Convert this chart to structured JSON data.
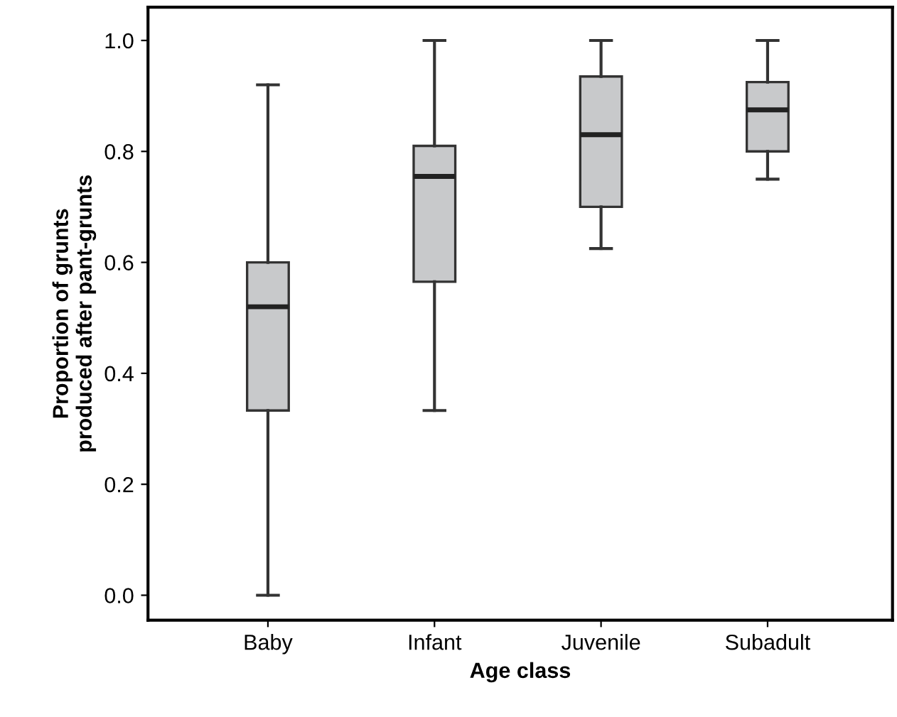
{
  "chart_data": {
    "type": "box",
    "xlabel": "Age class",
    "ylabel": "Proportion of grunts\nproduced after pant-grunts",
    "categories": [
      "Baby",
      "Infant",
      "Juvenile",
      "Subadult"
    ],
    "boxes": [
      {
        "low": 0.0,
        "q1": 0.333,
        "median": 0.52,
        "q3": 0.6,
        "high": 0.92
      },
      {
        "low": 0.333,
        "q1": 0.565,
        "median": 0.755,
        "q3": 0.81,
        "high": 1.0
      },
      {
        "low": 0.625,
        "q1": 0.7,
        "median": 0.83,
        "q3": 0.935,
        "high": 1.0
      },
      {
        "low": 0.75,
        "q1": 0.8,
        "median": 0.875,
        "q3": 0.925,
        "high": 1.0
      }
    ],
    "color": "#c8c9cb",
    "ylim": [
      -0.045,
      1.06
    ],
    "yticks": [
      {
        "value": 0,
        "label": "0.0"
      },
      0.2,
      0.4,
      0.6,
      0.8,
      {
        "value": 1,
        "label": "1.0"
      }
    ],
    "grid": false
  }
}
